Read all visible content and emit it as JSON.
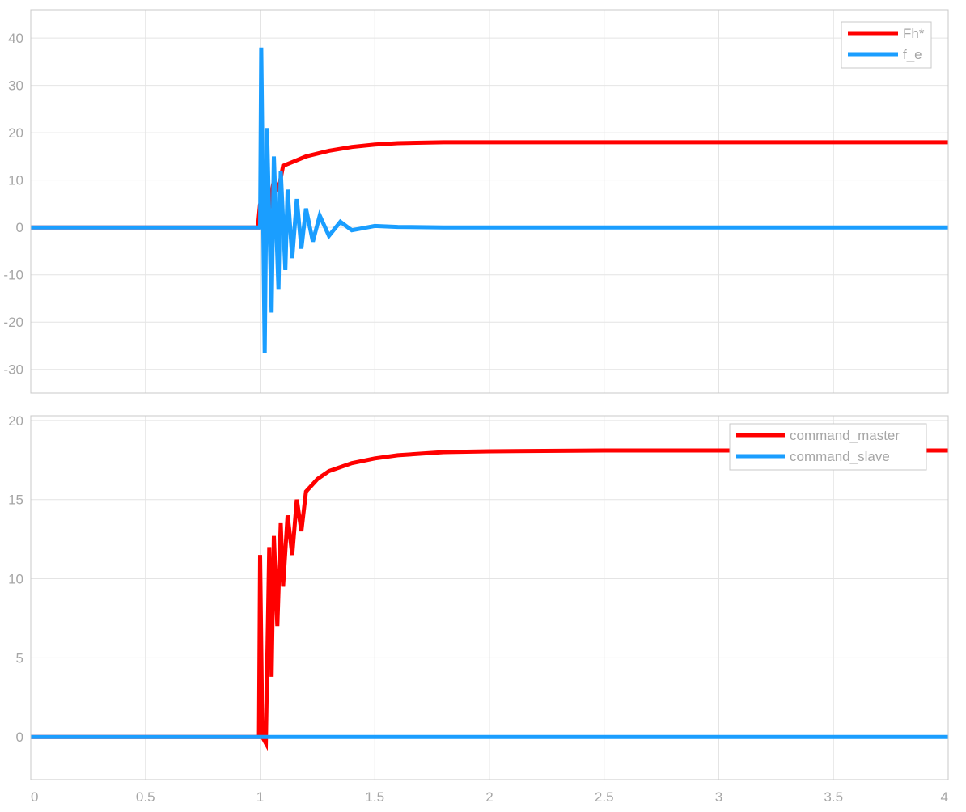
{
  "chart_data": [
    {
      "type": "line",
      "title": "",
      "xlabel": "",
      "ylabel": "",
      "xlim": [
        0,
        4
      ],
      "ylim": [
        -35,
        46
      ],
      "yticks": [
        40,
        30,
        20,
        10,
        0,
        -10,
        -20,
        -30
      ],
      "ytick_labels": [
        "40",
        "30",
        "20",
        "10",
        "0",
        "-10",
        "-20",
        "-30"
      ],
      "grid": true,
      "legend_position": "top-right",
      "series": [
        {
          "name": "Fh*",
          "color": "#ff0000",
          "x": [
            0,
            0.99,
            1.0,
            1.01,
            1.02,
            1.04,
            1.06,
            1.08,
            1.1,
            1.15,
            1.2,
            1.3,
            1.4,
            1.5,
            1.6,
            1.8,
            2.0,
            3.0,
            4.0
          ],
          "y": [
            0,
            0,
            5,
            2,
            7,
            4,
            10,
            8,
            13,
            14,
            15,
            16.2,
            17,
            17.5,
            17.8,
            18,
            18,
            18,
            18
          ]
        },
        {
          "name": "f_e",
          "color": "#1a9eff",
          "x": [
            0,
            0.99,
            1.0,
            1.005,
            1.02,
            1.03,
            1.05,
            1.06,
            1.08,
            1.09,
            1.11,
            1.12,
            1.14,
            1.16,
            1.18,
            1.2,
            1.23,
            1.26,
            1.3,
            1.35,
            1.4,
            1.5,
            1.6,
            1.8,
            2.0,
            4.0
          ],
          "y": [
            0,
            0,
            0,
            38,
            -26.5,
            21,
            -18,
            15,
            -13,
            12,
            -9,
            8,
            -6.5,
            6,
            -4.5,
            4,
            -3,
            2.5,
            -1.8,
            1.2,
            -0.6,
            0.3,
            0.1,
            0,
            0,
            0
          ]
        }
      ]
    },
    {
      "type": "line",
      "title": "",
      "xlabel": "",
      "ylabel": "",
      "xlim": [
        0,
        4
      ],
      "ylim": [
        -2.7,
        20.3
      ],
      "xticks": [
        0,
        0.5,
        1,
        1.5,
        2,
        2.5,
        3,
        3.5,
        4
      ],
      "xtick_labels": [
        "0",
        "0.5",
        "1",
        "1.5",
        "2",
        "2.5",
        "3",
        "3.5",
        "4"
      ],
      "yticks": [
        20,
        15,
        10,
        5,
        0
      ],
      "ytick_labels": [
        "20",
        "15",
        "10",
        "5",
        "0"
      ],
      "grid": true,
      "legend_position": "top-right",
      "series": [
        {
          "name": "command_master",
          "color": "#ff0000",
          "x": [
            0,
            0.995,
            1.0,
            1.01,
            1.025,
            1.04,
            1.05,
            1.06,
            1.075,
            1.09,
            1.1,
            1.12,
            1.14,
            1.16,
            1.18,
            1.2,
            1.25,
            1.3,
            1.4,
            1.5,
            1.6,
            1.8,
            2.0,
            2.5,
            3.0,
            4.0
          ],
          "y": [
            0,
            0,
            11.5,
            0,
            -0.4,
            12,
            3.8,
            12.7,
            7,
            13.5,
            9.5,
            14,
            11.5,
            15,
            13,
            15.5,
            16.3,
            16.8,
            17.3,
            17.6,
            17.8,
            18,
            18.05,
            18.1,
            18.1,
            18.1
          ]
        },
        {
          "name": "command_slave",
          "color": "#1a9eff",
          "x": [
            0,
            4
          ],
          "y": [
            0,
            0
          ]
        }
      ]
    }
  ]
}
